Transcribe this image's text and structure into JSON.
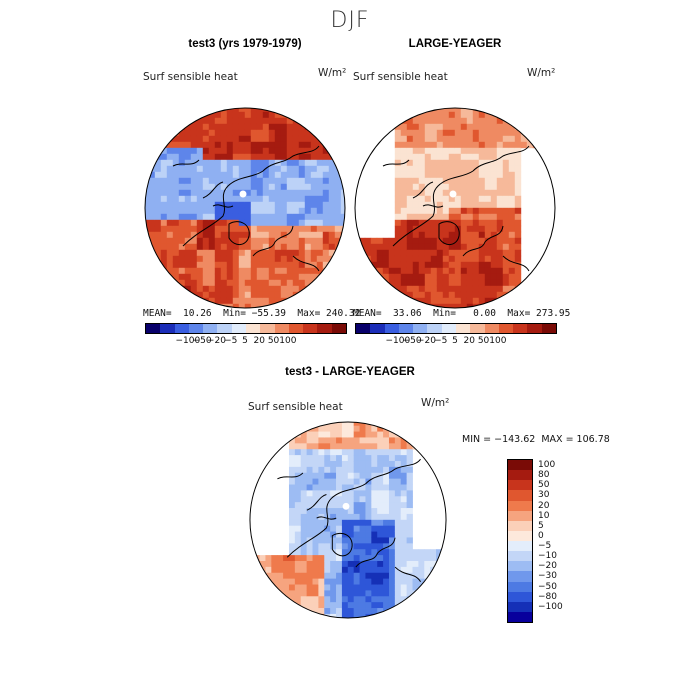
{
  "figure": {
    "season": "DJF"
  },
  "palette": [
    "#08006b",
    "#1b2db8",
    "#3a5ee0",
    "#5e85ea",
    "#8fb0f2",
    "#bcd2f7",
    "#e1ecfb",
    "#fbe3d2",
    "#f6b99a",
    "#ef8a62",
    "#e0572f",
    "#c8341c",
    "#a51b10",
    "#7a0b06"
  ],
  "colorbar_ticks": [
    "−100",
    "−50",
    "−20",
    "−5",
    "5",
    "20",
    "50",
    "100"
  ],
  "diff_palette": [
    "#7a0b06",
    "#a51b10",
    "#c8341c",
    "#e0572f",
    "#ef7a4c",
    "#f6a47f",
    "#fbd0b9",
    "#fde9dc",
    "#e3edfb",
    "#c3d6f7",
    "#9dbcf3",
    "#7098ec",
    "#4d7ae3",
    "#2e56d8",
    "#1530b7",
    "#08009c"
  ],
  "diff_colorbar_ticks": [
    "100",
    "80",
    "50",
    "30",
    "20",
    "10",
    "5",
    "0",
    "−5",
    "−10",
    "−20",
    "−30",
    "−50",
    "−80",
    "−100"
  ],
  "chart_data": [
    {
      "type": "heatmap",
      "title": "test3 (yrs 1979-1979)",
      "variable": "Surf sensible heat",
      "units": "W/m²",
      "mean": 10.26,
      "min": -55.39,
      "max": 240.32,
      "stats_text": "MEAN=  10.26  Min= −55.39  Max= 240.32",
      "projection": "north polar stereographic",
      "color_levels": [
        -100,
        -50,
        -20,
        -5,
        5,
        20,
        50,
        100
      ]
    },
    {
      "type": "heatmap",
      "title": "LARGE-YEAGER",
      "variable": "Surf sensible heat",
      "units": "W/m²",
      "mean": 33.06,
      "min": 0.0,
      "max": 273.95,
      "stats_text": "MEAN=  33.06  Min=   0.00  Max= 273.95",
      "projection": "north polar stereographic",
      "color_levels": [
        -100,
        -50,
        -20,
        -5,
        5,
        20,
        50,
        100
      ]
    },
    {
      "type": "heatmap",
      "title": "test3 - LARGE-YEAGER",
      "variable": "Surf sensible heat",
      "units": "W/m²",
      "min": -143.62,
      "max": 106.78,
      "stats_text": "MIN = −143.62  MAX = 106.78",
      "projection": "north polar stereographic",
      "color_levels": [
        100,
        80,
        50,
        30,
        20,
        10,
        5,
        0,
        -5,
        -10,
        -20,
        -30,
        -50,
        -80,
        -100
      ]
    }
  ]
}
